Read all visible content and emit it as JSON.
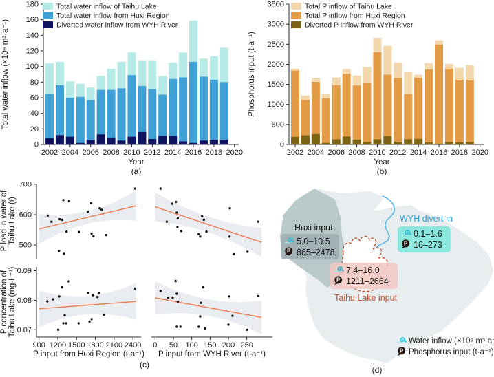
{
  "chart_data": [
    {
      "id": "a",
      "type": "bar",
      "caption": "(a)",
      "xlabel": "Year",
      "ylabel": "Total water inflow (×10⁸ m³·a⁻¹)",
      "ylim": [
        0,
        180
      ],
      "ytick_step": 20,
      "xticks": [
        2002,
        2004,
        2006,
        2008,
        2010,
        2012,
        2014,
        2016,
        2018,
        2020
      ],
      "years": [
        2002,
        2003,
        2004,
        2005,
        2006,
        2007,
        2008,
        2009,
        2010,
        2011,
        2012,
        2013,
        2014,
        2015,
        2016,
        2017,
        2018,
        2019
      ],
      "legend_position": "top-left",
      "series": [
        {
          "key": "total",
          "name": "Total water inflow of Taihu Lake",
          "color": "#b6eae6",
          "values": [
            104,
            106,
            81,
            78,
            73,
            88,
            97,
            106,
            118,
            108,
            108,
            88,
            105,
            118,
            159,
            110,
            113,
            124
          ]
        },
        {
          "key": "huxi",
          "name": "Total water inflow from Huxi Region",
          "color": "#3fa0d6",
          "values": [
            65,
            76,
            60,
            61,
            57,
            70,
            70,
            72,
            89,
            75,
            71,
            64,
            84,
            86,
            106,
            87,
            83,
            80
          ]
        },
        {
          "key": "wyh",
          "name": "Diverted water inflow from WYH River",
          "color": "#10135e",
          "values": [
            8,
            12,
            10,
            2,
            6,
            13,
            9,
            5,
            10,
            16,
            7,
            11,
            11,
            4,
            2,
            5,
            6,
            6
          ]
        }
      ]
    },
    {
      "id": "b",
      "type": "bar",
      "caption": "(b)",
      "xlabel": "Year",
      "ylabel": "Phosphorus input (t·a⁻¹)",
      "ylim": [
        0,
        3500
      ],
      "ytick_step": 500,
      "xticks": [
        2002,
        2004,
        2006,
        2008,
        2010,
        2012,
        2014,
        2016,
        2018,
        2020
      ],
      "years": [
        2002,
        2003,
        2004,
        2005,
        2006,
        2007,
        2008,
        2009,
        2010,
        2011,
        2012,
        2013,
        2014,
        2015,
        2016,
        2017,
        2018,
        2019
      ],
      "legend_position": "top-left",
      "series": [
        {
          "key": "total",
          "name": "Total P inflow of Taihu Lake",
          "color": "#f3d8ae",
          "values": [
            1890,
            1220,
            1660,
            1270,
            1670,
            1880,
            1720,
            1930,
            2660,
            2460,
            2040,
            1820,
            1740,
            2030,
            2600,
            2010,
            1910,
            1980
          ]
        },
        {
          "key": "huxi",
          "name": "Total P inflow from Huxi Region",
          "color": "#e49b45",
          "values": [
            1840,
            1110,
            1560,
            1150,
            1480,
            1760,
            1470,
            1540,
            2300,
            1740,
            1660,
            1260,
            1660,
            1870,
            2490,
            1890,
            1610,
            1610
          ]
        },
        {
          "key": "wyh",
          "name": "Diverted P inflow from WYH River",
          "color": "#7d6414",
          "values": [
            190,
            230,
            260,
            40,
            130,
            200,
            120,
            60,
            130,
            210,
            70,
            130,
            140,
            50,
            20,
            60,
            50,
            60
          ]
        }
      ]
    },
    {
      "id": "c",
      "type": "scatter",
      "caption": "(c)",
      "line_color": "#ec7a4a",
      "band_color": "#e9edf1",
      "point_color": "#141414",
      "col_xlabels": [
        "P input from Huxi Region (t·a⁻¹)",
        "P input from WYH River (t·a⁻¹)"
      ],
      "row_ylabels": [
        [
          "P load in water of",
          "Taihu Lake (t)"
        ],
        [
          "P concentration of",
          "Taihu Lake (mg·L⁻¹)"
        ]
      ],
      "subplots": [
        {
          "row": 0,
          "col": 0,
          "xlim": [
            860,
            2530
          ],
          "ylim": [
            455,
            702
          ],
          "xticks": [
            900,
            1200,
            1500,
            1800,
            2100,
            2400
          ],
          "yticks": [
            500,
            600,
            700
          ],
          "points": [
            [
              1040,
              597
            ],
            [
              1100,
              577
            ],
            [
              1230,
              585
            ],
            [
              1270,
              583
            ],
            [
              1290,
              648
            ],
            [
              1380,
              645
            ],
            [
              1340,
              544
            ],
            [
              1220,
              479
            ],
            [
              1300,
              471
            ],
            [
              1540,
              543
            ],
            [
              1680,
              610
            ],
            [
              1735,
              638
            ],
            [
              1740,
              538
            ],
            [
              1770,
              529
            ],
            [
              1870,
              621
            ],
            [
              1900,
              616
            ],
            [
              1970,
              533
            ],
            [
              2435,
              686
            ]
          ],
          "trend": {
            "x": [
              900,
              2450
            ],
            "y": [
              553,
              629
            ]
          },
          "band": {
            "mid": 21,
            "end": 50
          },
          "axis_left": true,
          "axis_bottom": false
        },
        {
          "row": 0,
          "col": 1,
          "xlim": [
            -10,
            320
          ],
          "ylim": [
            455,
            702
          ],
          "xticks": [
            0,
            50,
            100,
            150,
            200,
            250
          ],
          "yticks": [],
          "points": [
            [
              15,
              686
            ],
            [
              47,
              636
            ],
            [
              57,
              642
            ],
            [
              59,
              607
            ],
            [
              62,
              588
            ],
            [
              32,
              577
            ],
            [
              61,
              560
            ],
            [
              71,
              546
            ],
            [
              128,
              595
            ],
            [
              133,
              583
            ],
            [
              119,
              536
            ],
            [
              123,
              528
            ],
            [
              140,
              544
            ],
            [
              204,
              621
            ],
            [
              203,
              528
            ],
            [
              214,
              470
            ],
            [
              252,
              478
            ],
            [
              281,
              577
            ]
          ],
          "trend": {
            "x": [
              0,
              290
            ],
            "y": [
              626,
              509
            ]
          },
          "band": {
            "mid": 26,
            "end": 48
          },
          "axis_left": false,
          "axis_bottom": false
        },
        {
          "row": 1,
          "col": 0,
          "xlim": [
            860,
            2530
          ],
          "ylim": [
            0.0675,
            0.0913
          ],
          "xticks": [
            900,
            1200,
            1500,
            1800,
            2100,
            2400
          ],
          "yticks": [
            0.07,
            0.08,
            0.09
          ],
          "points": [
            [
              1034,
              0.0796
            ],
            [
              1124,
              0.0803
            ],
            [
              1224,
              0.0813
            ],
            [
              1267,
              0.0844
            ],
            [
              1374,
              0.0864
            ],
            [
              1207,
              0.07
            ],
            [
              1290,
              0.0722
            ],
            [
              1334,
              0.0722
            ],
            [
              1310,
              0.0749
            ],
            [
              1534,
              0.0722
            ],
            [
              1684,
              0.0825
            ],
            [
              1707,
              0.0728
            ],
            [
              1740,
              0.0736
            ],
            [
              1760,
              0.0817
            ],
            [
              1834,
              0.0811
            ],
            [
              1860,
              0.0825
            ],
            [
              1934,
              0.0751
            ],
            [
              2435,
              0.084
            ]
          ],
          "trend": {
            "x": [
              900,
              2450
            ],
            "y": [
              0.0771,
              0.0796
            ]
          },
          "band": {
            "mid": 0.0031,
            "end": 0.0063
          },
          "axis_left": true,
          "axis_bottom": true
        },
        {
          "row": 1,
          "col": 1,
          "xlim": [
            -10,
            320
          ],
          "ylim": [
            0.0675,
            0.0913
          ],
          "xticks": [
            0,
            50,
            100,
            150,
            200,
            250
          ],
          "yticks": [],
          "points": [
            [
              15,
              0.0832
            ],
            [
              36,
              0.0808
            ],
            [
              48,
              0.0809
            ],
            [
              56,
              0.0865
            ],
            [
              59,
              0.0822
            ],
            [
              62,
              0.0795
            ],
            [
              59,
              0.071
            ],
            [
              69,
              0.071
            ],
            [
              123,
              0.0745
            ],
            [
              125,
              0.0791
            ],
            [
              131,
              0.0844
            ],
            [
              119,
              0.071
            ],
            [
              136,
              0.0704
            ],
            [
              202,
              0.0813
            ],
            [
              200,
              0.0717
            ],
            [
              211,
              0.0747
            ],
            [
              250,
              0.07
            ],
            [
              281,
              0.0814
            ]
          ],
          "trend": {
            "x": [
              0,
              290
            ],
            "y": [
              0.0808,
              0.0742
            ]
          },
          "band": {
            "mid": 0.0028,
            "end": 0.0057
          },
          "axis_left": false,
          "axis_bottom": true
        }
      ]
    }
  ],
  "map_panel": {
    "caption": "(d)",
    "huxi_label": "Huxi input",
    "wyh_label": "WYH divert-in",
    "taihu_label": "Taihu Lake input",
    "huxi_badge": {
      "water": "5.0–10.5",
      "p": "865–2478"
    },
    "wyh_badge": {
      "water": "0.1–1.6",
      "p": "16–273"
    },
    "taihu_badge": {
      "water": "7.4–16.0",
      "p": "1211–2664"
    },
    "legend": {
      "water_label": "Water inflow (×10⁹ m³·a⁻¹)",
      "p_label": "Phosphorus input (t·a⁻¹)"
    },
    "colors": {
      "basin": "#e8edf0",
      "huxi_region": "#b9c8c9",
      "lake_outline": "#c2522e",
      "river": "#56b7e8",
      "huxi_badge": "#9fafb4",
      "wyh_badge": "#8ce8de",
      "taihu_badge": "#f2c8c2",
      "wyh_text": "#2e9fd4",
      "taihu_text": "#c2522e",
      "water_icon": "#2fbfd6",
      "p_icon": "#241712"
    }
  }
}
